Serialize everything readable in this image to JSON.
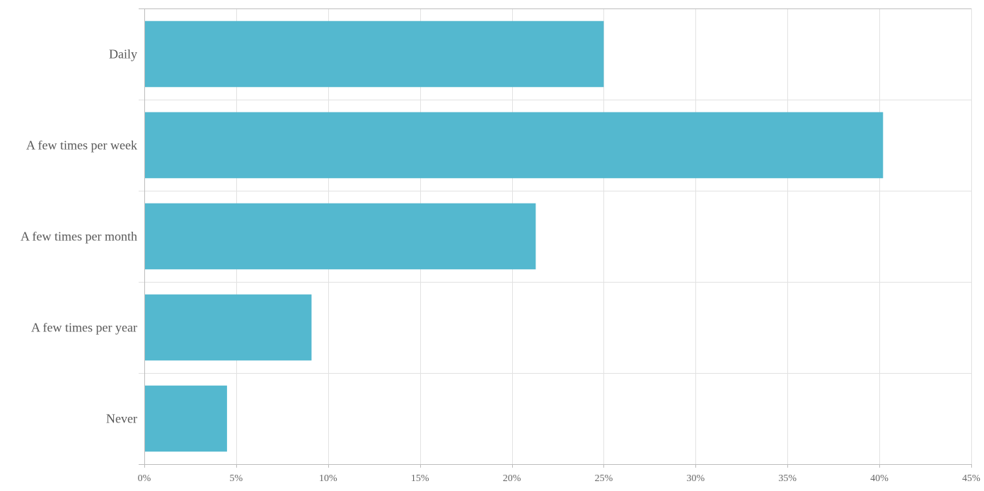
{
  "chart_data": {
    "type": "bar",
    "orientation": "horizontal",
    "categories": [
      "Daily",
      "A few times per week",
      "A few times per month",
      "A few times per year",
      "Never"
    ],
    "values": [
      25.0,
      40.2,
      21.3,
      9.1,
      4.5
    ],
    "value_unit": "%",
    "xlim": [
      0,
      45
    ],
    "x_ticks": [
      0,
      5,
      10,
      15,
      20,
      25,
      30,
      35,
      40,
      45
    ],
    "x_tick_labels": [
      "0%",
      "5%",
      "10%",
      "15%",
      "20%",
      "25%",
      "30%",
      "35%",
      "40%",
      "45%"
    ],
    "grid": true,
    "legend": "none",
    "bar_color": "#54b8cf"
  }
}
